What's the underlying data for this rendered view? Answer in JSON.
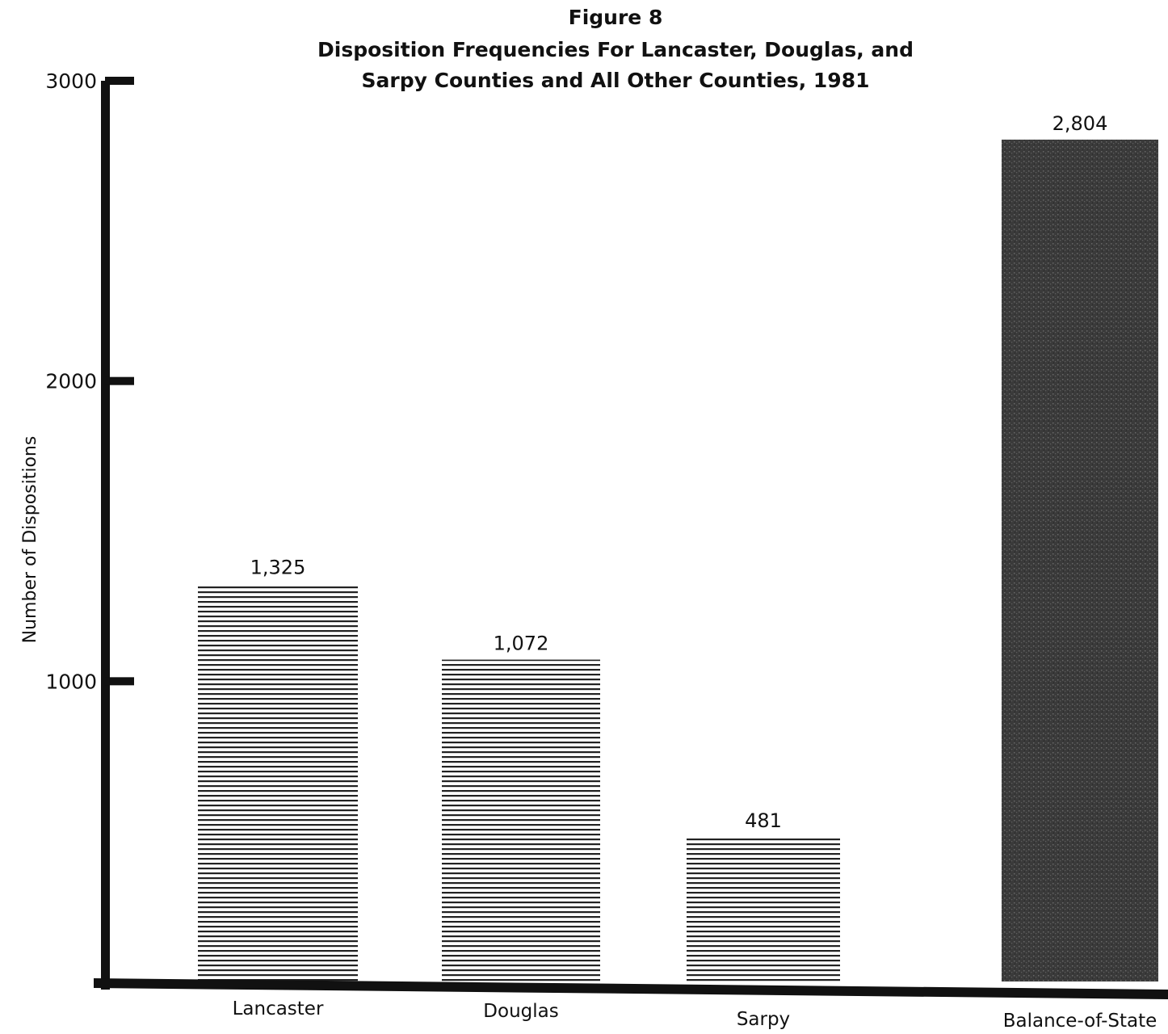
{
  "chart_data": {
    "type": "bar",
    "title": "Figure 8",
    "subtitle": [
      "Disposition Frequencies For Lancaster, Douglas, and",
      "Sarpy Counties and All Other Counties, 1981"
    ],
    "xlabel": "",
    "ylabel": "Number of Dispositions",
    "ylim": [
      0,
      3000
    ],
    "yticks": [
      1000,
      2000,
      3000
    ],
    "ytick_labels": [
      "1000",
      "2000",
      "3000"
    ],
    "categories": [
      "Lancaster",
      "Douglas",
      "Sarpy",
      "Balance-of-State"
    ],
    "values": [
      1325,
      1072,
      481,
      2804
    ],
    "data_labels": [
      "1,325",
      "1,072",
      "481",
      "2,804"
    ],
    "bar_styles": [
      "hatched",
      "hatched",
      "hatched",
      "solid-dark"
    ],
    "grid": false,
    "legend": "none",
    "colors": {
      "axis": "#111111",
      "hatch": "#222222",
      "dark_bar": "#3a3a3a"
    }
  }
}
